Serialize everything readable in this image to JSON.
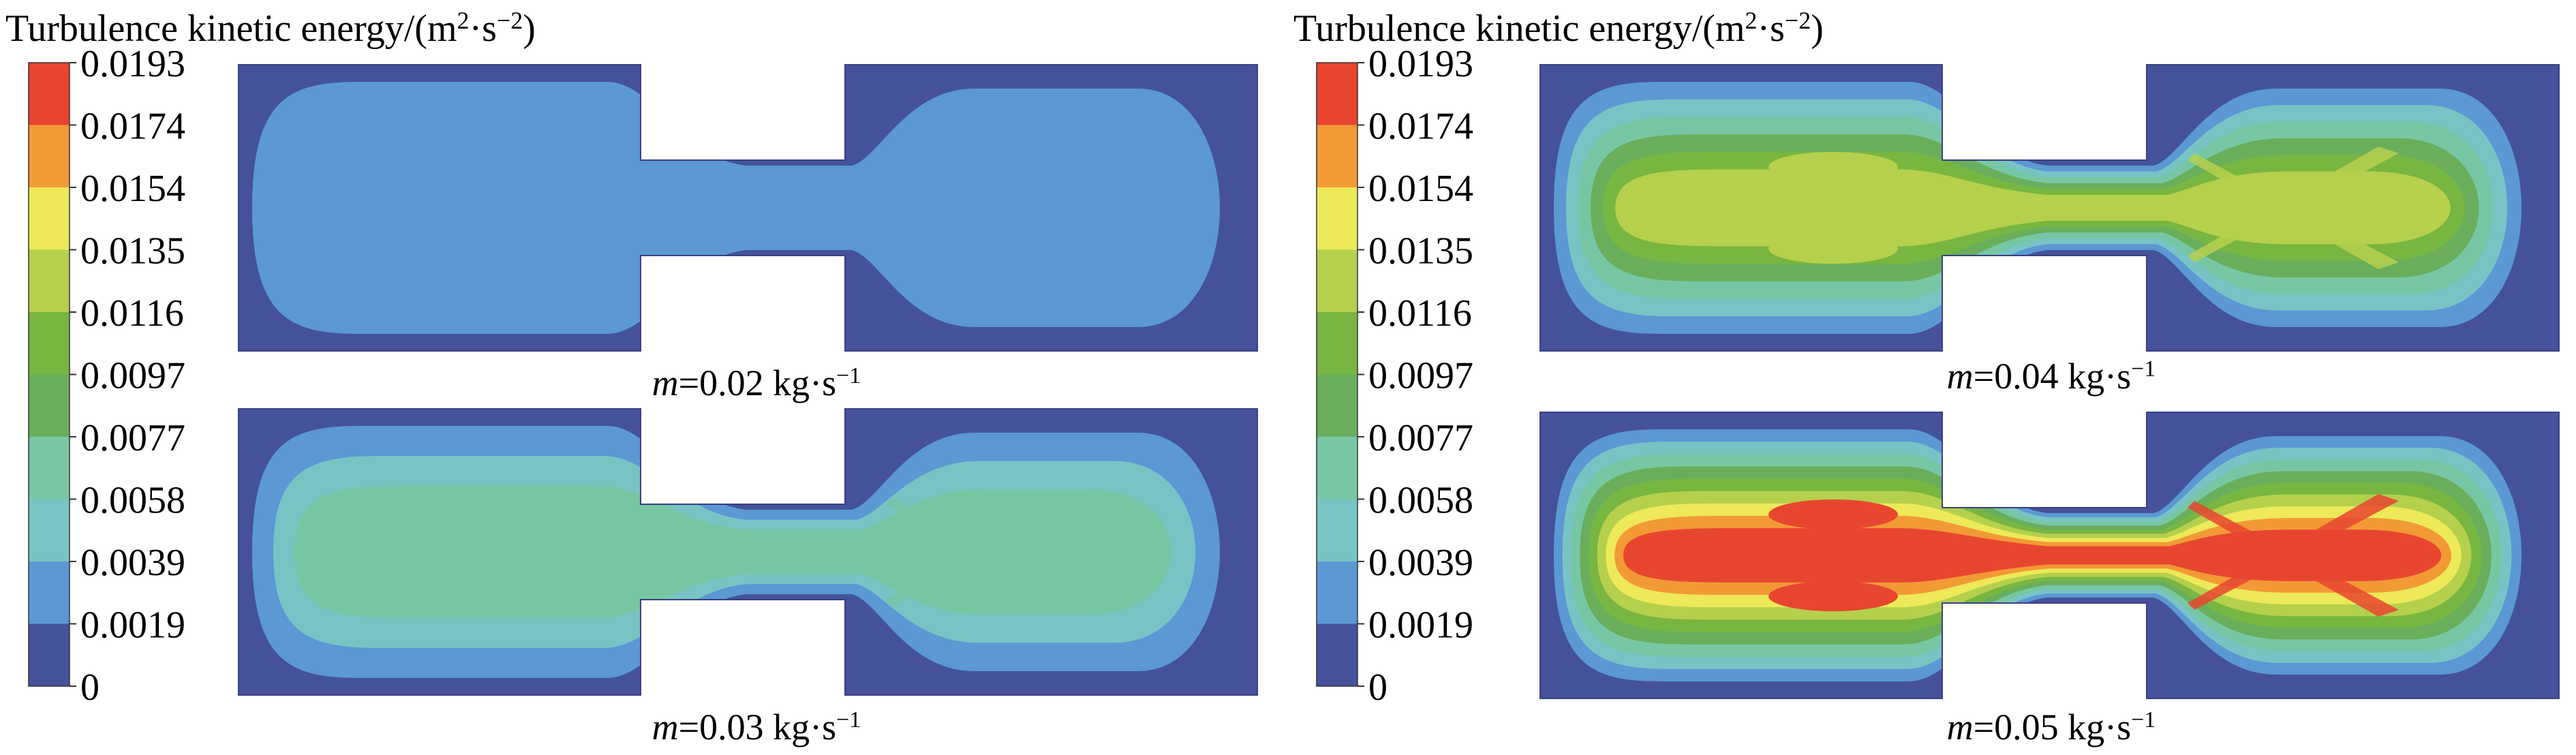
{
  "colorbar": {
    "title_main": "Turbulence kinetic energy/(m",
    "title_sup1": "2",
    "title_mid": "·s",
    "title_sup2": "−2",
    "title_end": ")",
    "ticks": [
      "0.0193",
      "0.0174",
      "0.0154",
      "0.0135",
      "0.0116",
      "0.0097",
      "0.0077",
      "0.0058",
      "0.0039",
      "0.0019",
      "0"
    ],
    "colors": [
      "#e8452f",
      "#f29a36",
      "#ede958",
      "#b5d04d",
      "#77b640",
      "#6aae5c",
      "#78c7a4",
      "#78c4c4",
      "#5b98d4",
      "#45519b"
    ]
  },
  "cases": [
    {
      "var": "m",
      "value": "=0.02 kg·s",
      "exp": "−1",
      "level": 1
    },
    {
      "var": "m",
      "value": "=0.03 kg·s",
      "exp": "−1",
      "level": 3
    },
    {
      "var": "m",
      "value": "=0.04 kg·s",
      "exp": "−1",
      "level": 6
    },
    {
      "var": "m",
      "value": "=0.05 kg·s",
      "exp": "−1",
      "level": 9
    }
  ]
}
